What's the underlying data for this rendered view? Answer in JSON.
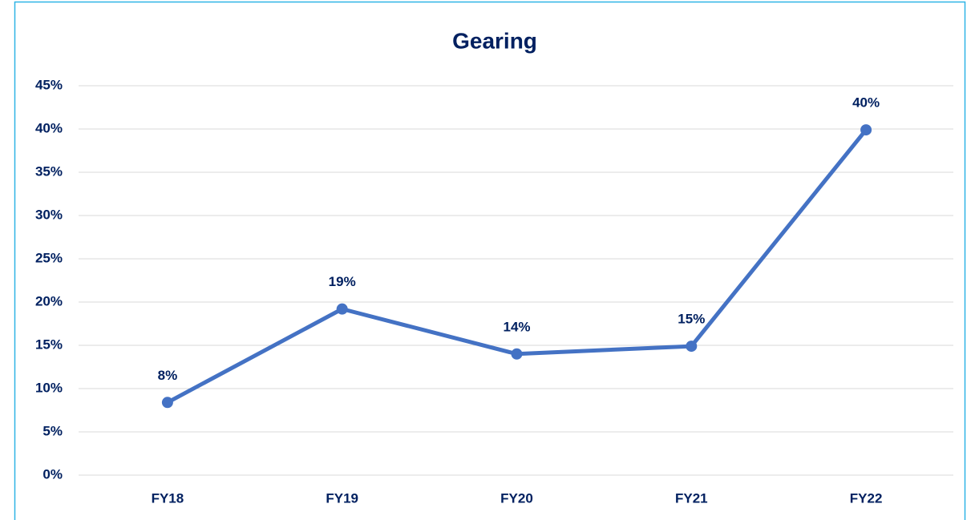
{
  "chart_data": {
    "type": "line",
    "title": "Gearing",
    "categories": [
      "FY18",
      "FY19",
      "FY20",
      "FY21",
      "FY22"
    ],
    "values": [
      8.4,
      19.2,
      14,
      14.9,
      39.9
    ],
    "value_labels": [
      "8%",
      "19%",
      "14%",
      "15%",
      "40%"
    ],
    "color": "#4472c4",
    "ylim": [
      0,
      45
    ],
    "yticks": [
      {
        "value": 0,
        "label": "0%"
      },
      {
        "value": 5,
        "label": "5%"
      },
      {
        "value": 10,
        "label": "10%"
      },
      {
        "value": 15,
        "label": "15%"
      },
      {
        "value": 20,
        "label": "20%"
      },
      {
        "value": 25,
        "label": "25%"
      },
      {
        "value": 30,
        "label": "30%"
      },
      {
        "value": 35,
        "label": "35%"
      },
      {
        "value": 40,
        "label": "40%"
      },
      {
        "value": 45,
        "label": "45%"
      }
    ],
    "grid": true
  }
}
